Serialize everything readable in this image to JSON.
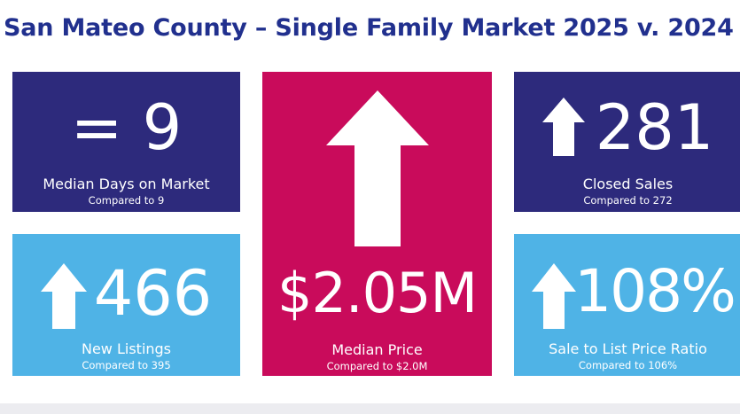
{
  "title": "San Mateo County – Single Family Market 2025 v. 2024",
  "tiles": {
    "days": {
      "value": "= 9",
      "label": "Median Days on Market",
      "sub": "Compared to 9",
      "color": "#2d2a7c",
      "trend": "equal"
    },
    "listings": {
      "value": "466",
      "label": "New Listings",
      "sub": "Compared to 395",
      "color": "#4fb3e6",
      "trend": "up"
    },
    "price": {
      "value": "$2.05M",
      "label": "Median Price",
      "sub": "Compared to $2.0M",
      "color": "#c90b5b",
      "trend": "up"
    },
    "sales": {
      "value": "281",
      "label": "Closed Sales",
      "sub": "Compared to 272",
      "color": "#2d2a7c",
      "trend": "up"
    },
    "ratio": {
      "value": "108%",
      "label": "Sale to List Price Ratio",
      "sub": "Compared to 106%",
      "color": "#4fb3e6",
      "trend": "up"
    }
  },
  "icons": {
    "up": "arrow-up-icon"
  }
}
